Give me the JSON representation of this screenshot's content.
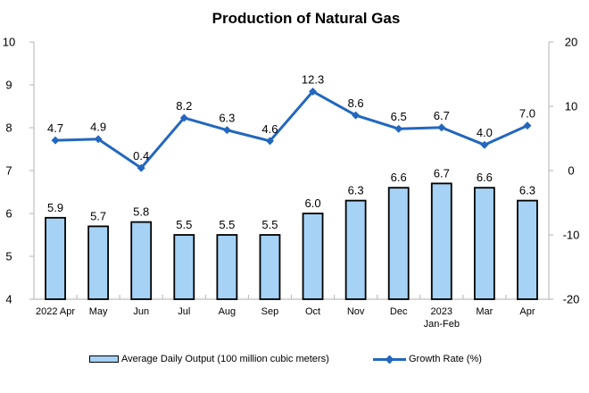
{
  "title": "Production of Natural Gas",
  "chart_data": {
    "type": "combo",
    "title": "Production of Natural Gas",
    "categories": [
      "2022 Apr",
      "May",
      "Jun",
      "Jul",
      "Aug",
      "Sep",
      "Oct",
      "Nov",
      "Dec",
      [
        "2023",
        "Jan-Feb"
      ],
      "Mar",
      "Apr"
    ],
    "series": [
      {
        "name": "Average Daily Output (100 million cubic meters)",
        "type": "bar",
        "axis": "left",
        "color": "#A5D2F5",
        "border_color": "#000000",
        "values": [
          5.9,
          5.7,
          5.8,
          5.5,
          5.5,
          5.5,
          6.0,
          6.3,
          6.6,
          6.7,
          6.6,
          6.3
        ]
      },
      {
        "name": "Growth Rate (%)",
        "type": "line",
        "axis": "right",
        "color": "#2367BE",
        "marker": "diamond",
        "values": [
          4.7,
          4.9,
          0.4,
          8.2,
          6.3,
          4.6,
          12.3,
          8.6,
          6.5,
          6.7,
          4.0,
          7.0
        ]
      }
    ],
    "left_axis": {
      "min": 4,
      "max": 10,
      "step": 1,
      "ticks": [
        10,
        9,
        8,
        7,
        6,
        5,
        4
      ]
    },
    "right_axis": {
      "min": -20,
      "max": 20,
      "step": 10,
      "ticks": [
        20,
        10,
        0,
        -10,
        -20
      ]
    },
    "axis_color": "#BFBFBF",
    "label_color": "#000000",
    "grid": false,
    "legend_position": "bottom",
    "data_labels": true
  }
}
